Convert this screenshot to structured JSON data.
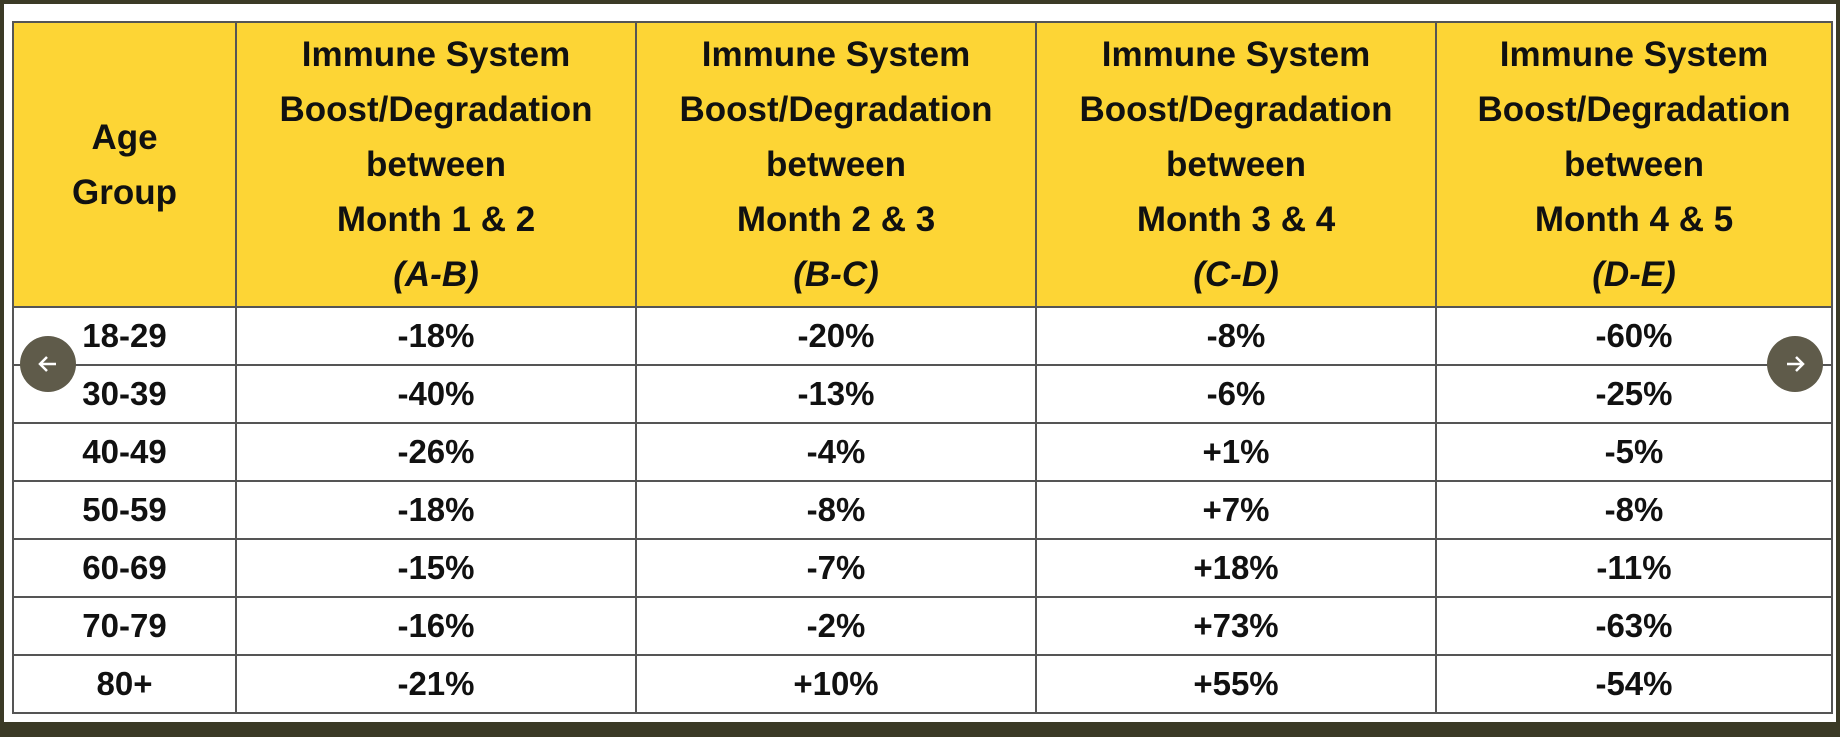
{
  "table": {
    "header": [
      {
        "lines": [
          "Age",
          "Group"
        ]
      },
      {
        "lines": [
          "Immune System",
          "Boost/Degradation",
          "between",
          "Month 1 & 2"
        ],
        "code": "(A-B)"
      },
      {
        "lines": [
          "Immune System",
          "Boost/Degradation",
          "between",
          "Month 2 & 3"
        ],
        "code": "(B-C)"
      },
      {
        "lines": [
          "Immune System",
          "Boost/Degradation",
          "between",
          "Month 3 & 4"
        ],
        "code": "(C-D)"
      },
      {
        "lines": [
          "Immune System",
          "Boost/Degradation",
          "between",
          "Month 4 & 5"
        ],
        "code": "(D-E)"
      }
    ],
    "rows": [
      [
        "18-29",
        "-18%",
        "-20%",
        "-8%",
        "-60%"
      ],
      [
        "30-39",
        "-40%",
        "-13%",
        "-6%",
        "-25%"
      ],
      [
        "40-49",
        "-26%",
        "-4%",
        "+1%",
        "-5%"
      ],
      [
        "50-59",
        "-18%",
        "-8%",
        "+7%",
        "-8%"
      ],
      [
        "60-69",
        "-15%",
        "-7%",
        "+18%",
        "-11%"
      ],
      [
        "70-79",
        "-16%",
        "-2%",
        "+73%",
        "-63%"
      ],
      [
        "80+",
        "-21%",
        "+10%",
        "+55%",
        "-54%"
      ]
    ]
  }
}
